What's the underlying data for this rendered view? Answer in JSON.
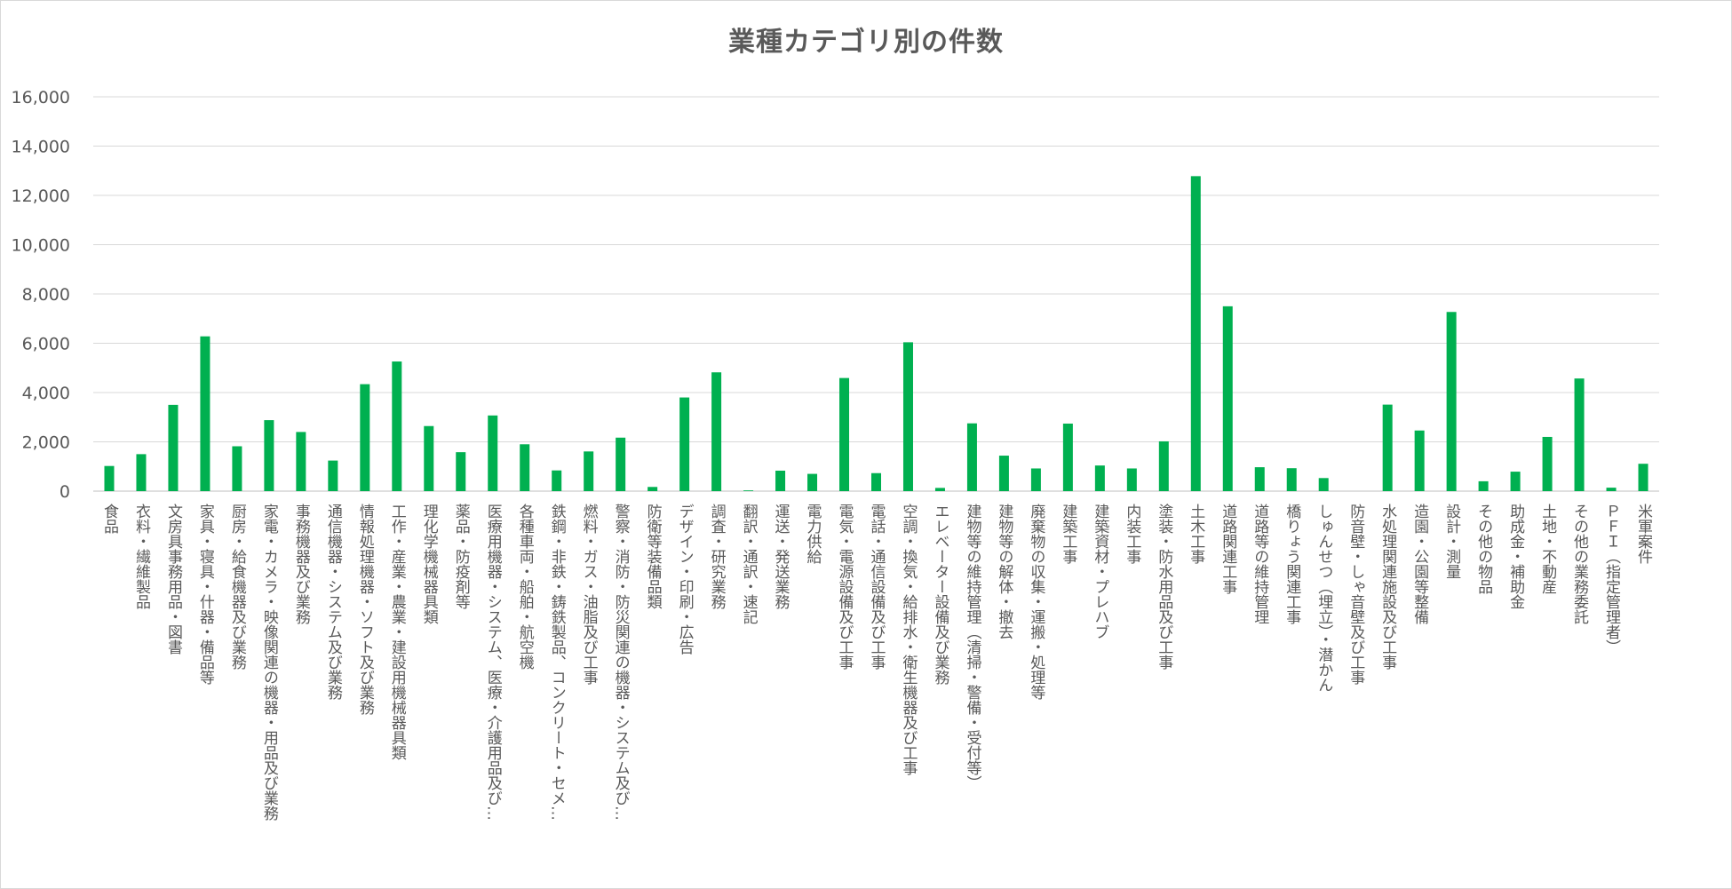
{
  "chart_data": {
    "type": "bar",
    "title": "業種カテゴリ別の件数",
    "xlabel": "",
    "ylabel": "",
    "ylim": [
      0,
      16000
    ],
    "yticks": [
      "0",
      "2,000",
      "4,000",
      "6,000",
      "8,000",
      "10,000",
      "12,000",
      "14,000",
      "16,000"
    ],
    "grid": true,
    "legend": "none",
    "bar_color": "#00b050",
    "categories": [
      "食品",
      "衣料・繊維製品",
      "文房具事務用品・図書",
      "家具・寝具・什器・備品等",
      "厨房・給食機器及び業務",
      "家電・カメラ・映像関連の機器・用品及び業務",
      "事務機器及び業務",
      "通信機器・システム及び業務",
      "情報処理機器・ソフト及び業務",
      "工作・産業・農業・建設用機械器具類",
      "理化学機械器具類",
      "薬品・防疫剤等",
      "医療用機器・システム、医療・介護用品及び…",
      "各種車両・船舶・航空機",
      "鉄鋼・非鉄・鋳鉄製品、コンクリート・セメ…",
      "燃料・ガス・油脂及び工事",
      "警察・消防・防災関連の機器・システム及び…",
      "防衛等装備品類",
      "デザイン・印刷・広告",
      "調査・研究業務",
      "翻訳・通訳・速記",
      "運送・発送業務",
      "電力供給",
      "電気・電源設備及び工事",
      "電話・通信設備及び工事",
      "空調・換気・給排水・衛生機器及び工事",
      "エレベーター設備及び業務",
      "建物等の維持管理（清掃・警備・受付等）",
      "建物等の解体・撤去",
      "廃棄物の収集・運搬・処理等",
      "建築工事",
      "建築資材・プレハブ",
      "内装工事",
      "塗装・防水用品及び工事",
      "土木工事",
      "道路関連工事",
      "道路等の維持管理",
      "橋りょう関連工事",
      "しゅんせつ（埋立）・潜かん",
      "防音壁・しゃ音壁及び工事",
      "水処理関連施設及び工事",
      "造園・公園等整備",
      "設計・測量",
      "その他の物品",
      "助成金・補助金",
      "土地・不動産",
      "その他の業務委託",
      "ＰＦＩ（指定管理者）",
      "米軍案件"
    ],
    "values": [
      1020,
      1500,
      3500,
      6280,
      1820,
      2880,
      2400,
      1240,
      4340,
      5260,
      2640,
      1580,
      3070,
      1900,
      840,
      1610,
      2170,
      170,
      3800,
      4820,
      30,
      830,
      700,
      4590,
      730,
      6040,
      130,
      2750,
      1440,
      920,
      2740,
      1040,
      920,
      2020,
      12780,
      7500,
      970,
      930,
      530,
      0,
      3510,
      2460,
      7270,
      400,
      790,
      2200,
      4570,
      140,
      1110
    ]
  }
}
